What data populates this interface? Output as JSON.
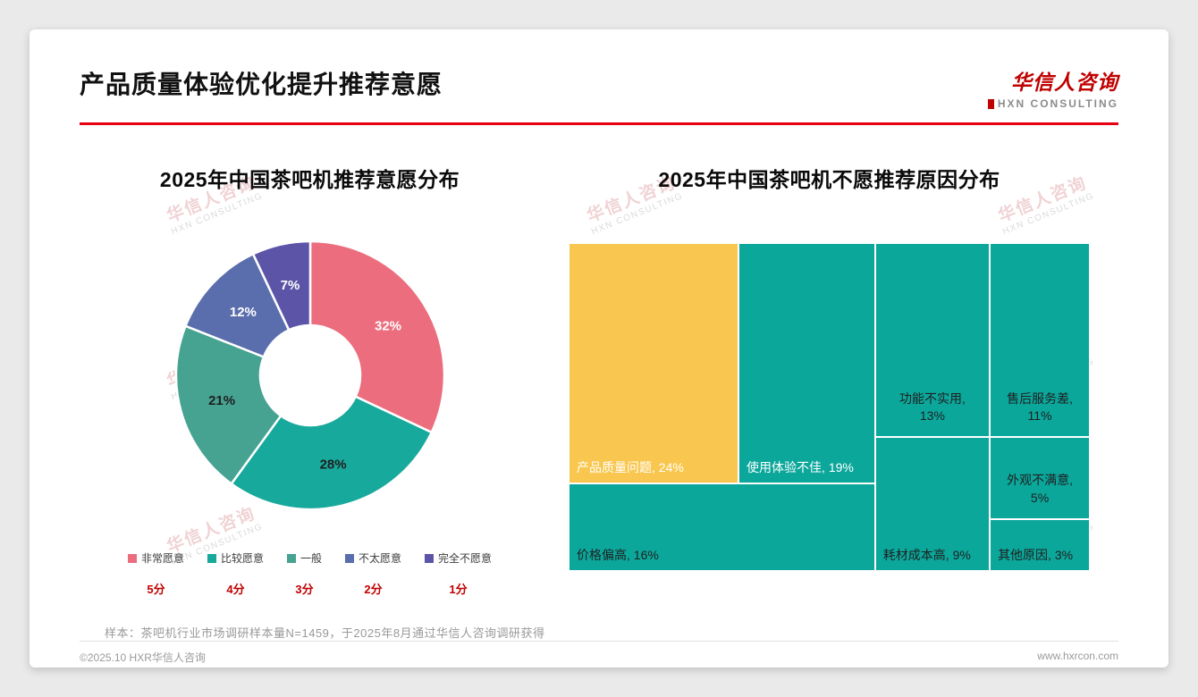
{
  "page": {
    "title": "产品质量体验优化提升推荐意愿",
    "logo": {
      "name": "华信人咨询",
      "sub": "HXN CONSULTING"
    },
    "watermark": {
      "line1": "华信人咨询",
      "line2": "HXN CONSULTING"
    },
    "sample_note": "样本：茶吧机行业市场调研样本量N=1459，于2025年8月通过华信人咨询调研获得",
    "footer": {
      "copyright": "©2025.10 HXR华信人咨询",
      "website": "www.hxrcon.com"
    }
  },
  "colors": {
    "accent_red": "#e60012",
    "score_red": "#c00000",
    "treemap_teal": "#0ba79b",
    "treemap_yellow": "#f9c74f"
  },
  "chart_data": [
    {
      "type": "pie",
      "subtype": "donut",
      "title": "2025年中国茶吧机推荐意愿分布",
      "legend_position": "bottom",
      "series": [
        {
          "label": "非常愿意",
          "score": "5分",
          "value": 32,
          "color": "#ec6d7d",
          "text_color": "#ffffff"
        },
        {
          "label": "比较愿意",
          "score": "4分",
          "value": 28,
          "color": "#17a99c",
          "text_color": "#1f1f1f"
        },
        {
          "label": "一般",
          "score": "3分",
          "value": 21,
          "color": "#46a291",
          "text_color": "#1f1f1f"
        },
        {
          "label": "不太愿意",
          "score": "2分",
          "value": 12,
          "color": "#5a6dad",
          "text_color": "#ffffff"
        },
        {
          "label": "完全不愿意",
          "score": "1分",
          "value": 7,
          "color": "#5c55a7",
          "text_color": "#ffffff"
        }
      ]
    },
    {
      "type": "treemap",
      "title": "2025年中国茶吧机不愿推荐原因分布",
      "items": [
        {
          "label": "产品质量问题",
          "value": 24,
          "color": "#f9c74f",
          "text_color": "#ffffff",
          "align": "bottom-left",
          "two_line": false,
          "rect": {
            "x": 0,
            "y": 0,
            "w": 32.6,
            "h": 73.3
          }
        },
        {
          "label": "使用体验不佳",
          "value": 19,
          "color": "#0ba79b",
          "text_color": "#ffffff",
          "align": "bottom-left",
          "two_line": false,
          "rect": {
            "x": 32.6,
            "y": 0,
            "w": 26.2,
            "h": 73.3
          }
        },
        {
          "label": "功能不实用",
          "value": 13,
          "color": "#0ba79b",
          "text_color": "#1f1f1f",
          "align": "bottom-center",
          "two_line": true,
          "rect": {
            "x": 58.8,
            "y": 0,
            "w": 22.0,
            "h": 59.1
          }
        },
        {
          "label": "售后服务差",
          "value": 11,
          "color": "#0ba79b",
          "text_color": "#1f1f1f",
          "align": "bottom-center",
          "two_line": true,
          "rect": {
            "x": 80.8,
            "y": 0,
            "w": 19.2,
            "h": 59.1
          }
        },
        {
          "label": "价格偏高",
          "value": 16,
          "color": "#0ba79b",
          "text_color": "#1f1f1f",
          "align": "bottom-left",
          "two_line": false,
          "rect": {
            "x": 0,
            "y": 73.3,
            "w": 58.8,
            "h": 26.7
          }
        },
        {
          "label": "耗材成本高",
          "value": 9,
          "color": "#0ba79b",
          "text_color": "#1f1f1f",
          "align": "bottom-left",
          "two_line": false,
          "rect": {
            "x": 58.8,
            "y": 59.1,
            "w": 22.0,
            "h": 40.9
          }
        },
        {
          "label": "外观不满意",
          "value": 5,
          "color": "#0ba79b",
          "text_color": "#1f1f1f",
          "align": "bottom-center",
          "two_line": true,
          "rect": {
            "x": 80.8,
            "y": 59.1,
            "w": 19.2,
            "h": 25.0
          }
        },
        {
          "label": "其他原因",
          "value": 3,
          "color": "#0ba79b",
          "text_color": "#1f1f1f",
          "align": "bottom-left",
          "two_line": false,
          "rect": {
            "x": 80.8,
            "y": 84.1,
            "w": 19.2,
            "h": 15.9
          }
        }
      ]
    }
  ]
}
